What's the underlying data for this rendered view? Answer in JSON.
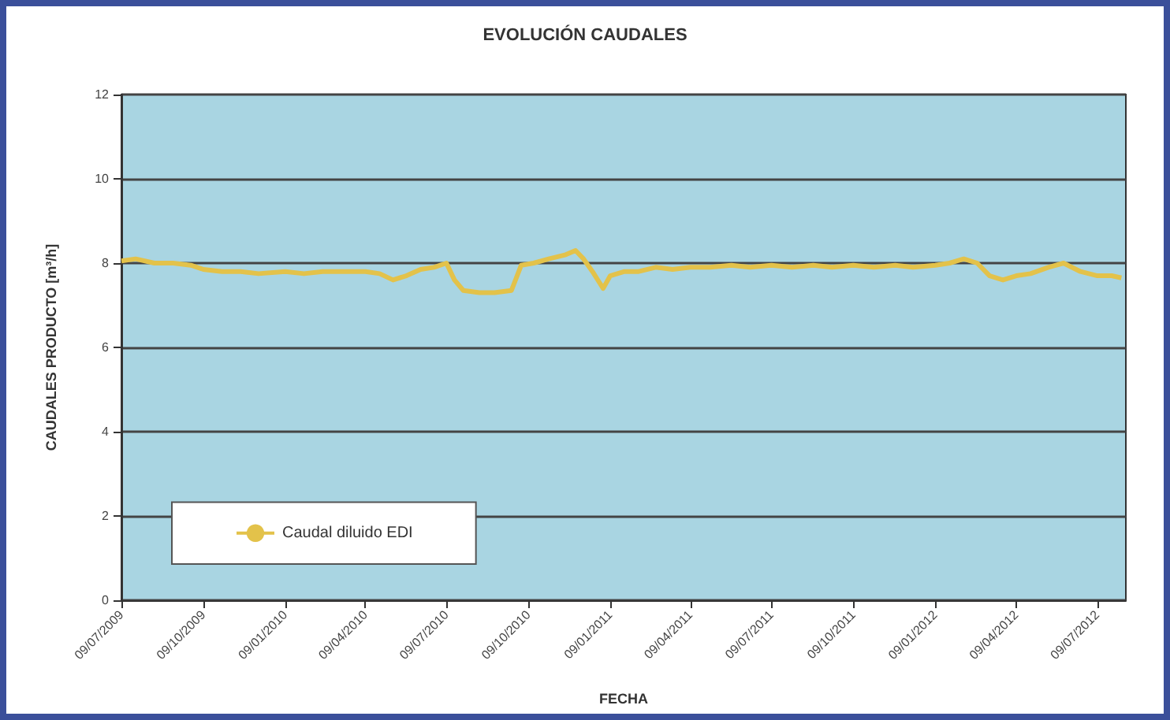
{
  "chart_data": {
    "type": "line",
    "title": "EVOLUCIÓN CAUDALES",
    "xlabel": "FECHA",
    "ylabel": "CAUDALES PRODUCTO [m³/h]",
    "x": [
      "2009-07-09",
      "2009-07-25",
      "2009-08-15",
      "2009-09-05",
      "2009-09-25",
      "2009-10-09",
      "2009-10-30",
      "2009-11-20",
      "2009-12-10",
      "2010-01-09",
      "2010-01-30",
      "2010-02-20",
      "2010-03-15",
      "2010-04-09",
      "2010-04-25",
      "2010-05-10",
      "2010-05-25",
      "2010-06-10",
      "2010-06-25",
      "2010-07-09",
      "2010-07-18",
      "2010-07-28",
      "2010-08-15",
      "2010-09-01",
      "2010-09-20",
      "2010-10-01",
      "2010-10-15",
      "2010-11-01",
      "2010-11-20",
      "2010-12-01",
      "2010-12-10",
      "2010-12-20",
      "2011-01-01",
      "2011-01-09",
      "2011-01-25",
      "2011-02-10",
      "2011-03-01",
      "2011-03-20",
      "2011-04-09",
      "2011-05-01",
      "2011-05-25",
      "2011-06-15",
      "2011-07-09",
      "2011-08-01",
      "2011-08-25",
      "2011-09-15",
      "2011-10-09",
      "2011-11-01",
      "2011-11-25",
      "2011-12-15",
      "2012-01-09",
      "2012-01-25",
      "2012-02-10",
      "2012-02-25",
      "2012-03-10",
      "2012-03-25",
      "2012-04-09",
      "2012-04-25",
      "2012-05-15",
      "2012-06-01",
      "2012-06-20",
      "2012-07-09",
      "2012-07-25",
      "2012-08-05"
    ],
    "series": [
      {
        "name": "Caudal diluido EDI",
        "color": "#e3c24a",
        "values": [
          8.05,
          8.1,
          8.0,
          8.0,
          7.95,
          7.85,
          7.8,
          7.8,
          7.75,
          7.8,
          7.75,
          7.8,
          7.8,
          7.8,
          7.75,
          7.6,
          7.7,
          7.85,
          7.9,
          8.0,
          7.6,
          7.35,
          7.3,
          7.3,
          7.35,
          7.95,
          8.0,
          8.1,
          8.2,
          8.3,
          8.1,
          7.8,
          7.4,
          7.7,
          7.8,
          7.8,
          7.9,
          7.85,
          7.9,
          7.9,
          7.95,
          7.9,
          7.95,
          7.9,
          7.95,
          7.9,
          7.95,
          7.9,
          7.95,
          7.9,
          7.95,
          8.0,
          8.1,
          8.0,
          7.7,
          7.6,
          7.7,
          7.75,
          7.9,
          8.0,
          7.8,
          7.7,
          7.7,
          7.65
        ]
      }
    ],
    "line_style": "solid",
    "marker": "none",
    "xlim": [
      "2009-07-09",
      "2012-08-10"
    ],
    "xticks": [
      {
        "value": "2009-07-09",
        "label": "09/07/2009"
      },
      {
        "value": "2009-10-09",
        "label": "09/10/2009"
      },
      {
        "value": "2010-01-09",
        "label": "09/01/2010"
      },
      {
        "value": "2010-04-09",
        "label": "09/04/2010"
      },
      {
        "value": "2010-07-09",
        "label": "09/07/2010"
      },
      {
        "value": "2010-10-09",
        "label": "09/10/2010"
      },
      {
        "value": "2011-01-09",
        "label": "09/01/2011"
      },
      {
        "value": "2011-04-09",
        "label": "09/04/2011"
      },
      {
        "value": "2011-07-09",
        "label": "09/07/2011"
      },
      {
        "value": "2011-10-09",
        "label": "09/10/2011"
      },
      {
        "value": "2012-01-09",
        "label": "09/01/2012"
      },
      {
        "value": "2012-04-09",
        "label": "09/04/2012"
      },
      {
        "value": "2012-07-09",
        "label": "09/07/2012"
      }
    ],
    "ylim": [
      0,
      12
    ],
    "yticks": [
      0,
      2,
      4,
      6,
      8,
      10,
      12
    ],
    "grid": "y",
    "legend": "bottom left"
  }
}
